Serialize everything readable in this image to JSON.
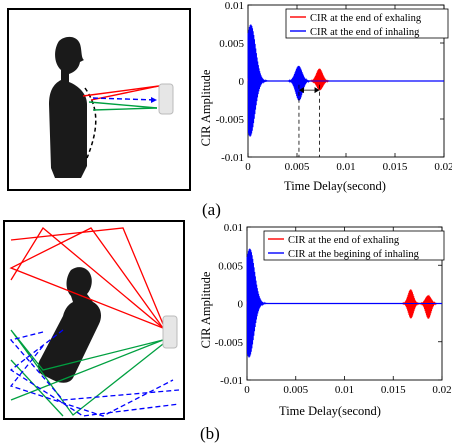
{
  "panels": [
    {
      "label": "(a)"
    },
    {
      "label": "(b)"
    }
  ],
  "colors": {
    "exhale": "#ff0000",
    "inhale": "#0000ff",
    "green": "#00a040"
  },
  "chart_data": [
    {
      "type": "line",
      "xlabel": "Time Delay(second)",
      "ylabel": "CIR Amplitude",
      "xlim": [
        0,
        0.02
      ],
      "ylim": [
        -0.01,
        0.01
      ],
      "xticks": [
        "0",
        "0.005",
        "0.01",
        "0.015",
        "0.02"
      ],
      "yticks": [
        "0.01",
        "0.005",
        "0",
        "-0.005",
        "-0.01"
      ],
      "series": [
        {
          "name": "CIR at the end of exhaling",
          "color": "#ff0000",
          "bursts": [
            {
              "t": 0.0002,
              "amp": 0.0035,
              "width": 0.00012
            },
            {
              "t": 0.0073,
              "amp": 0.0017,
              "width": 0.00045
            }
          ]
        },
        {
          "name": "CIR at the end of inhaling",
          "color": "#0000ff",
          "bursts": [
            {
              "t": 0.00025,
              "amp": 0.0085,
              "width": 0.0007
            },
            {
              "t": 0.0052,
              "amp": 0.0027,
              "width": 0.0005
            }
          ]
        }
      ],
      "annotation": {
        "x1": 0.0052,
        "x2": 0.0073
      }
    },
    {
      "type": "line",
      "xlabel": "Time Delay(second)",
      "ylabel": "CIR Amplitude",
      "xlim": [
        0,
        0.02
      ],
      "ylim": [
        -0.01,
        0.01
      ],
      "xticks": [
        "0",
        "0.005",
        "0.01",
        "0.015",
        "0.02"
      ],
      "yticks": [
        "0.01",
        "0.005",
        "0",
        "-0.005",
        "-0.01"
      ],
      "series": [
        {
          "name": "CIR at the end of exhaling",
          "color": "#ff0000",
          "bursts": [
            {
              "t": 0.0002,
              "amp": 0.003,
              "width": 0.00012
            },
            {
              "t": 0.0168,
              "amp": 0.0022,
              "width": 0.0004
            },
            {
              "t": 0.0186,
              "amp": 0.002,
              "width": 0.0004
            }
          ]
        },
        {
          "name": "CIR at the begining of inhaling",
          "color": "#0000ff",
          "bursts": [
            {
              "t": 0.00025,
              "amp": 0.0082,
              "width": 0.0007
            }
          ]
        }
      ]
    }
  ]
}
